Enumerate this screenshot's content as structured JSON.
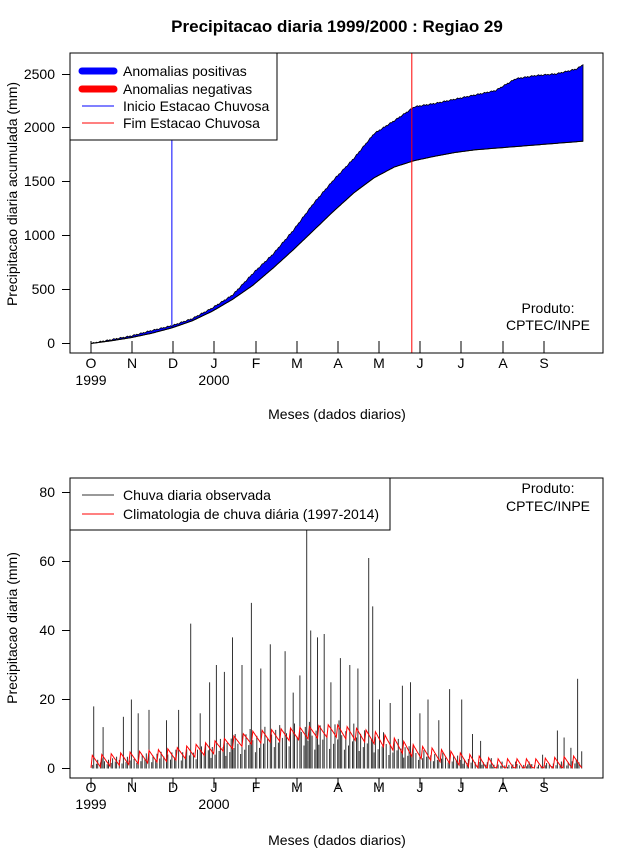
{
  "colors": {
    "positive": "#0000ff",
    "negative": "#ff0000",
    "start_line": "#0000ff",
    "end_line": "#ff0000",
    "observed": "#333333",
    "climatology": "#ff0000"
  },
  "chart_data": [
    {
      "type": "area",
      "title": "Precipitacao diaria 1999/2000 : Regiao 29",
      "xlabel": "Meses (dados diarios)",
      "ylabel": "Precipitacao diaria acumulada (mm)",
      "ylim": [
        0,
        2600
      ],
      "yticks": [
        0,
        500,
        1000,
        1500,
        2000,
        2500
      ],
      "month_labels": [
        "O",
        "N",
        "D",
        "J",
        "F",
        "M",
        "A",
        "M",
        "J",
        "J",
        "A",
        "S"
      ],
      "year_labels": [
        "1999",
        "2000"
      ],
      "watermark": [
        "Produto:",
        "CPTEC/INPE"
      ],
      "legend": [
        "Anomalias positivas",
        "Anomalias negativas",
        "Inicio Estacao Chuvosa",
        "Fim Estacao Chuvosa"
      ],
      "rainy_season_start_day": 60,
      "rainy_season_end_day": 238,
      "day_points": [
        0,
        15,
        30,
        45,
        60,
        75,
        90,
        105,
        120,
        135,
        150,
        165,
        180,
        195,
        210,
        225,
        240,
        255,
        270,
        285,
        300,
        315,
        330,
        345,
        360,
        365
      ],
      "series": [
        {
          "name": "Precipitacao observada acumulada",
          "values": [
            0,
            35,
            70,
            120,
            165,
            230,
            330,
            450,
            650,
            830,
            1050,
            1300,
            1520,
            1720,
            1950,
            2070,
            2200,
            2230,
            2270,
            2310,
            2350,
            2460,
            2490,
            2505,
            2550,
            2590
          ]
        },
        {
          "name": "Climatologia acumulada",
          "values": [
            0,
            25,
            55,
            95,
            145,
            210,
            300,
            410,
            540,
            700,
            870,
            1050,
            1230,
            1400,
            1540,
            1640,
            1700,
            1740,
            1775,
            1800,
            1815,
            1830,
            1845,
            1860,
            1875,
            1880
          ]
        }
      ]
    },
    {
      "type": "bar",
      "xlabel": "Meses (dados diarios)",
      "ylabel": "Precipitacao diaria (mm)",
      "ylim": [
        0,
        82
      ],
      "yticks": [
        0,
        20,
        40,
        60,
        80
      ],
      "month_labels": [
        "O",
        "N",
        "D",
        "J",
        "F",
        "M",
        "A",
        "M",
        "J",
        "J",
        "A",
        "S"
      ],
      "year_labels": [
        "1999",
        "2000"
      ],
      "watermark": [
        "Produto:",
        "CPTEC/INPE"
      ],
      "legend": [
        "Chuva diaria observada",
        "Climatologia de chuva diária (1997-2014)"
      ],
      "observed_peaks": [
        {
          "day": 2,
          "value": 18
        },
        {
          "day": 9,
          "value": 12
        },
        {
          "day": 24,
          "value": 15
        },
        {
          "day": 30,
          "value": 20
        },
        {
          "day": 35,
          "value": 16
        },
        {
          "day": 43,
          "value": 17
        },
        {
          "day": 56,
          "value": 14
        },
        {
          "day": 65,
          "value": 17
        },
        {
          "day": 74,
          "value": 42
        },
        {
          "day": 81,
          "value": 16
        },
        {
          "day": 88,
          "value": 25
        },
        {
          "day": 93,
          "value": 30
        },
        {
          "day": 99,
          "value": 28
        },
        {
          "day": 105,
          "value": 38
        },
        {
          "day": 112,
          "value": 30
        },
        {
          "day": 119,
          "value": 48
        },
        {
          "day": 126,
          "value": 29
        },
        {
          "day": 133,
          "value": 36
        },
        {
          "day": 144,
          "value": 34
        },
        {
          "day": 150,
          "value": 22
        },
        {
          "day": 155,
          "value": 27
        },
        {
          "day": 160,
          "value": 70
        },
        {
          "day": 163,
          "value": 40
        },
        {
          "day": 168,
          "value": 38
        },
        {
          "day": 173,
          "value": 39
        },
        {
          "day": 178,
          "value": 25
        },
        {
          "day": 185,
          "value": 32
        },
        {
          "day": 192,
          "value": 30
        },
        {
          "day": 198,
          "value": 29
        },
        {
          "day": 206,
          "value": 61
        },
        {
          "day": 209,
          "value": 47
        },
        {
          "day": 214,
          "value": 20
        },
        {
          "day": 222,
          "value": 19
        },
        {
          "day": 231,
          "value": 24
        },
        {
          "day": 237,
          "value": 25
        },
        {
          "day": 244,
          "value": 16
        },
        {
          "day": 250,
          "value": 20
        },
        {
          "day": 258,
          "value": 14
        },
        {
          "day": 266,
          "value": 23
        },
        {
          "day": 275,
          "value": 20
        },
        {
          "day": 283,
          "value": 10
        },
        {
          "day": 289,
          "value": 8
        },
        {
          "day": 297,
          "value": 3
        },
        {
          "day": 305,
          "value": 2
        },
        {
          "day": 315,
          "value": 2
        },
        {
          "day": 325,
          "value": 2
        },
        {
          "day": 335,
          "value": 4
        },
        {
          "day": 346,
          "value": 11
        },
        {
          "day": 351,
          "value": 9
        },
        {
          "day": 356,
          "value": 6
        },
        {
          "day": 361,
          "value": 26
        },
        {
          "day": 364,
          "value": 5
        }
      ],
      "climatology_points": [
        {
          "day": 0,
          "value": 2
        },
        {
          "day": 30,
          "value": 3
        },
        {
          "day": 60,
          "value": 4
        },
        {
          "day": 90,
          "value": 6
        },
        {
          "day": 120,
          "value": 9
        },
        {
          "day": 150,
          "value": 10
        },
        {
          "day": 180,
          "value": 11
        },
        {
          "day": 210,
          "value": 9
        },
        {
          "day": 240,
          "value": 5
        },
        {
          "day": 270,
          "value": 3
        },
        {
          "day": 300,
          "value": 1
        },
        {
          "day": 330,
          "value": 1
        },
        {
          "day": 364,
          "value": 2
        }
      ]
    }
  ]
}
